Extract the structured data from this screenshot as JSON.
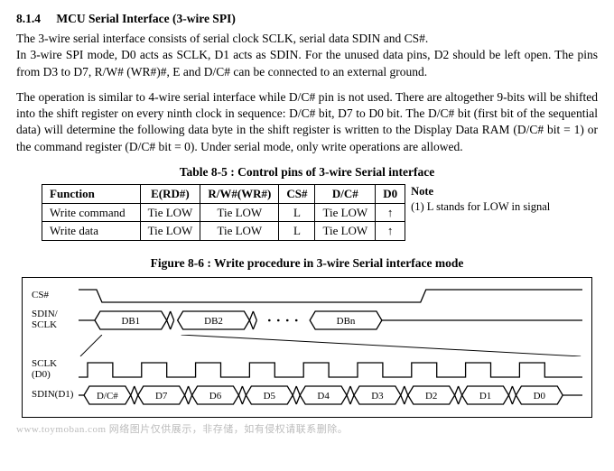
{
  "section": {
    "number": "8.1.4",
    "title": "MCU Serial Interface (3-wire SPI)"
  },
  "paragraphs": {
    "p1": "The 3-wire serial interface consists of serial clock SCLK, serial data SDIN and CS#.",
    "p2": "In 3-wire SPI mode, D0 acts as SCLK, D1 acts as SDIN. For the unused data pins, D2 should be left open. The pins from D3 to D7, R/W# (WR#)#, E and D/C# can be connected to an external ground.",
    "p3": "The operation is similar to 4-wire serial interface while D/C# pin is not used. There are altogether 9-bits will be shifted into the shift register on every ninth clock in sequence: D/C# bit, D7 to D0 bit. The D/C# bit (first bit of the sequential data) will determine the following data byte in the shift register is written to the Display Data RAM (D/C# bit = 1) or the command register (D/C# bit = 0). Under serial mode, only write operations are allowed."
  },
  "table": {
    "title": "Table 8-5 : Control pins of 3-wire Serial interface",
    "headers": [
      "Function",
      "E(RD#)",
      "R/W#(WR#)",
      "CS#",
      "D/C#",
      "D0"
    ],
    "rows": [
      [
        "Write command",
        "Tie LOW",
        "Tie LOW",
        "L",
        "Tie LOW",
        "↑"
      ],
      [
        "Write data",
        "Tie LOW",
        "Tie LOW",
        "L",
        "Tie LOW",
        "↑"
      ]
    ],
    "note_label": "Note",
    "note_text": "(1) L stands for LOW in signal"
  },
  "figure": {
    "title": "Figure 8-6 : Write procedure in 3-wire Serial interface mode",
    "labels": {
      "cs": "CS#",
      "sdin_sclk": "SDIN/\nSCLK",
      "sclk_d0": "SCLK\n(D0)",
      "sdin_d1": "SDIN(D1)"
    },
    "upper_bytes": [
      "DB1",
      "DB2",
      "DBn"
    ],
    "lower_bits": [
      "D/C#",
      "D7",
      "D6",
      "D5",
      "D4",
      "D3",
      "D2",
      "D1",
      "D0"
    ]
  },
  "watermark": "www.toymoban.com 网络图片仅供展示，非存储，如有侵权请联系删除。",
  "style": {
    "stroke": "#000000",
    "stroke_width": 1.3,
    "font_family": "Times New Roman",
    "bg": "#ffffff"
  }
}
